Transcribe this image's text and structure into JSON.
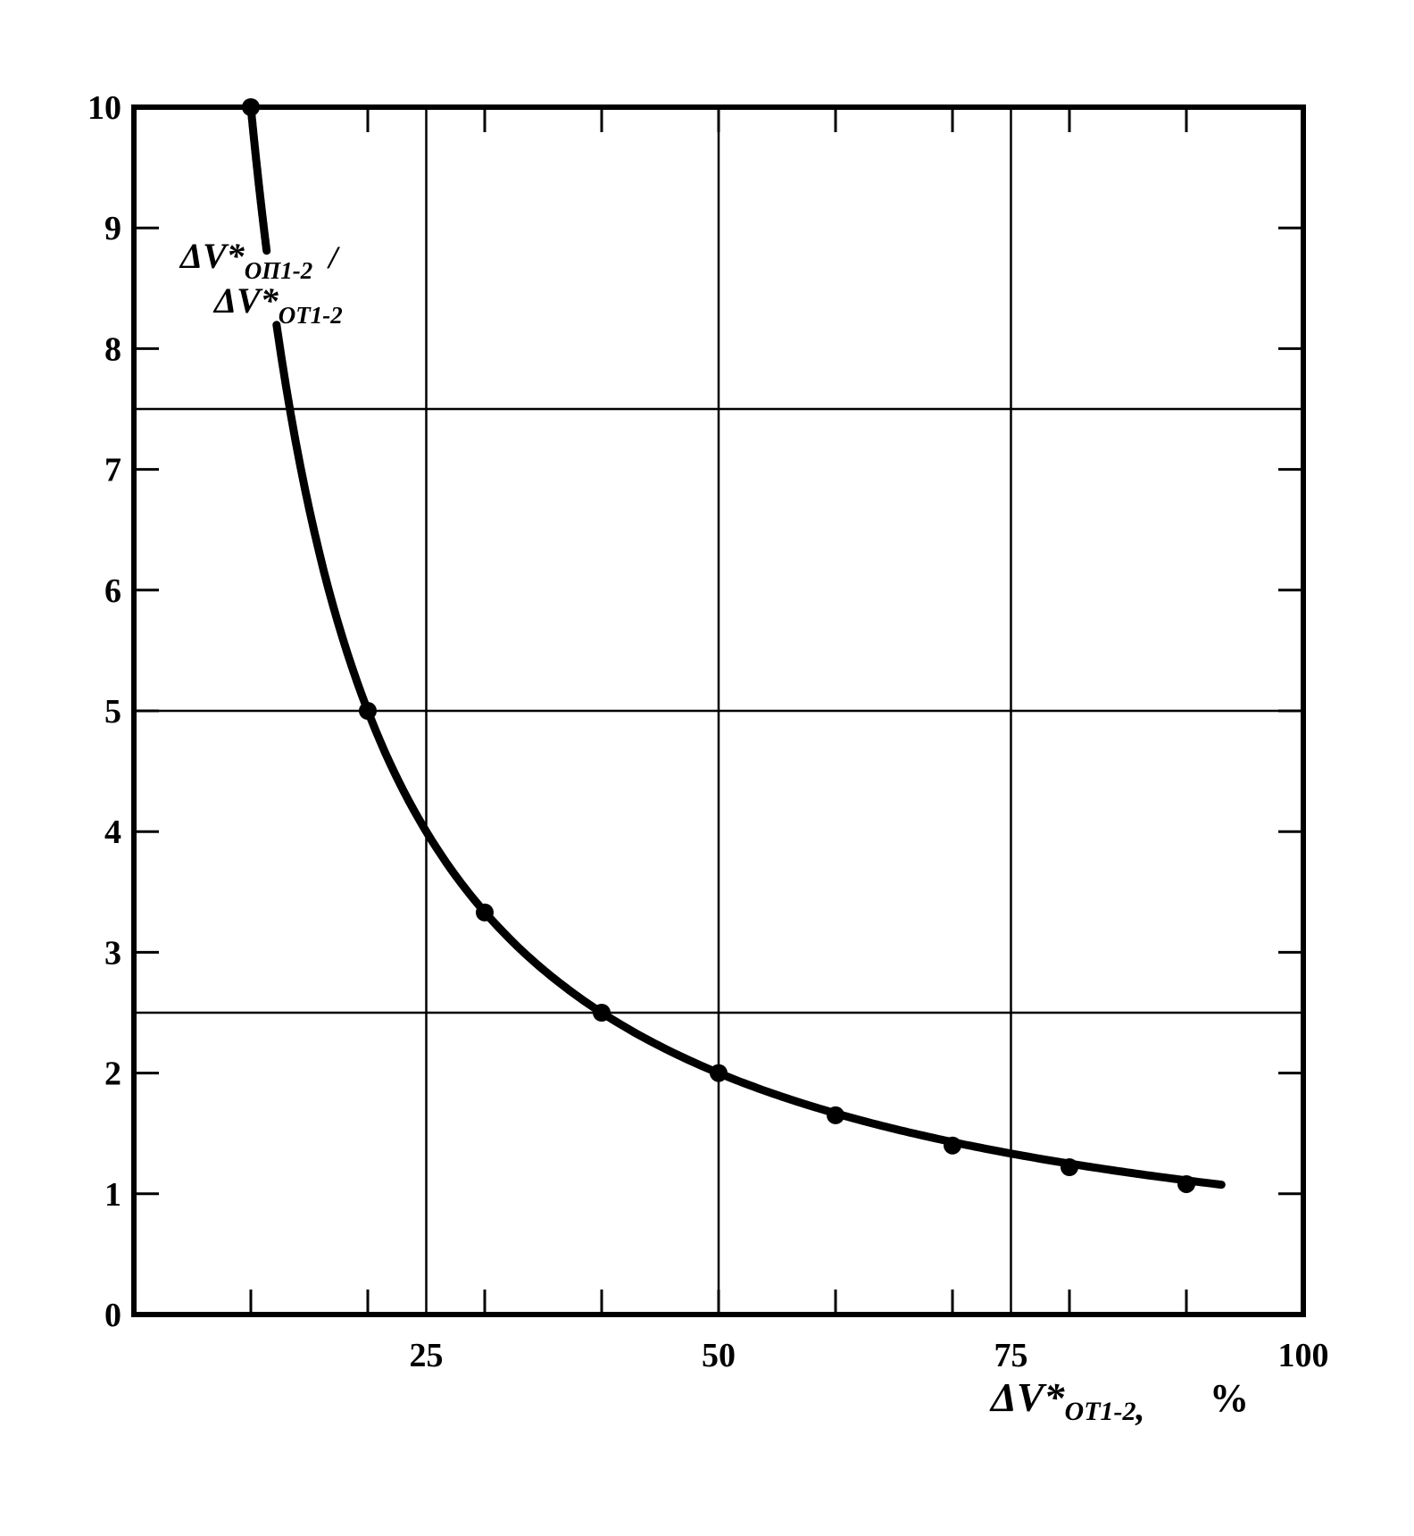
{
  "chart_data": {
    "type": "line",
    "xlim": [
      0,
      100
    ],
    "ylim": [
      0,
      10
    ],
    "x_ticks": [
      25,
      50,
      75,
      100
    ],
    "y_ticks": [
      0,
      1,
      2,
      3,
      4,
      5,
      6,
      7,
      8,
      9,
      10
    ],
    "x_grid": [
      25,
      50,
      75
    ],
    "y_grid": [
      2.5,
      5,
      7.5
    ],
    "grid": true,
    "xlabel": {
      "main": "ΔV*",
      "subscript": "OT1-2",
      "suffix": ",",
      "unit": "%"
    },
    "ylabel": {
      "line1_main": "ΔV*",
      "line1_subscript": "OП1-2",
      "line1_suffix": "/",
      "line2_main": "ΔV*",
      "line2_subscript": "OT1-2"
    },
    "series": [
      {
        "points": [
          {
            "x": 10,
            "y": 10
          },
          {
            "x": 20,
            "y": 5
          },
          {
            "x": 30,
            "y": 3.33
          },
          {
            "x": 40,
            "y": 2.5
          },
          {
            "x": 50,
            "y": 2
          },
          {
            "x": 60,
            "y": 1.65
          },
          {
            "x": 70,
            "y": 1.4
          },
          {
            "x": 80,
            "y": 1.22
          },
          {
            "x": 90,
            "y": 1.08
          }
        ],
        "curve_end_x": 93
      }
    ]
  }
}
